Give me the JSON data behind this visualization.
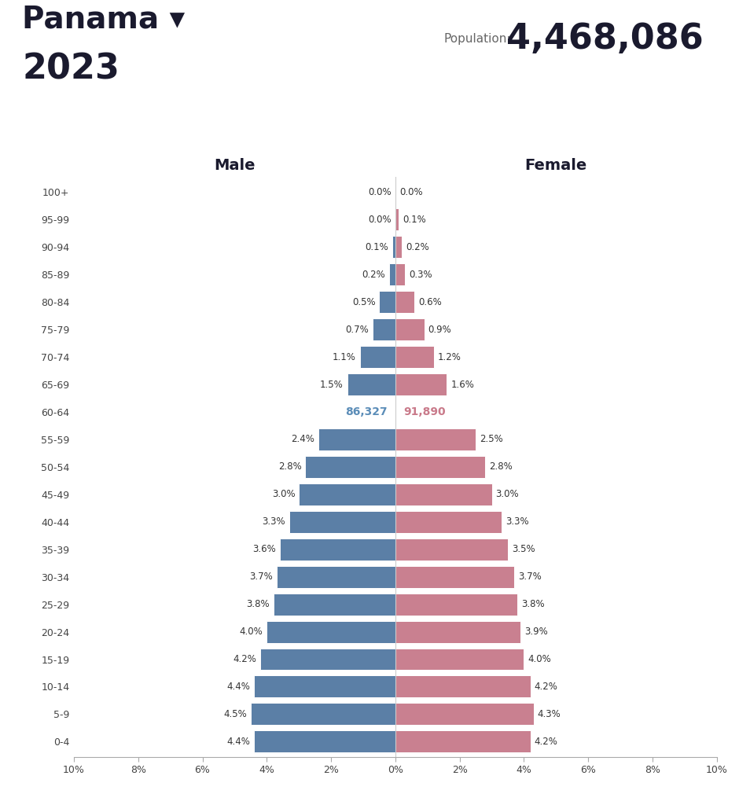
{
  "title_country": "Panama ▾",
  "title_year": "2023",
  "population_label": "Population:",
  "population_value": "4,468,086",
  "age_groups": [
    "0-4",
    "5-9",
    "10-14",
    "15-19",
    "20-24",
    "25-29",
    "30-34",
    "35-39",
    "40-44",
    "45-49",
    "50-54",
    "55-59",
    "60-64",
    "65-69",
    "70-74",
    "75-79",
    "80-84",
    "85-89",
    "90-94",
    "95-99",
    "100+"
  ],
  "male_pct": [
    4.4,
    4.5,
    4.4,
    4.2,
    4.0,
    3.8,
    3.7,
    3.6,
    3.3,
    3.0,
    2.8,
    2.4,
    0.0,
    1.5,
    1.1,
    0.7,
    0.5,
    0.2,
    0.1,
    0.0,
    0.0
  ],
  "female_pct": [
    4.2,
    4.3,
    4.2,
    4.0,
    3.9,
    3.8,
    3.7,
    3.5,
    3.3,
    3.0,
    2.8,
    2.5,
    0.0,
    1.6,
    1.2,
    0.9,
    0.6,
    0.3,
    0.2,
    0.1,
    0.0
  ],
  "male_labels": [
    "4.4%",
    "4.5%",
    "4.4%",
    "4.2%",
    "4.0%",
    "3.8%",
    "3.7%",
    "3.6%",
    "3.3%",
    "3.0%",
    "2.8%",
    "2.4%",
    "",
    "1.5%",
    "1.1%",
    "0.7%",
    "0.5%",
    "0.2%",
    "0.1%",
    "0.0%",
    "0.0%"
  ],
  "female_labels": [
    "4.2%",
    "4.3%",
    "4.2%",
    "4.0%",
    "3.9%",
    "3.8%",
    "3.7%",
    "3.5%",
    "3.3%",
    "3.0%",
    "2.8%",
    "2.5%",
    "",
    "1.6%",
    "1.2%",
    "0.9%",
    "0.6%",
    "0.3%",
    "0.2%",
    "0.1%",
    "0.0%"
  ],
  "highlight_age_idx": 12,
  "highlight_male_val": "86,327",
  "highlight_female_val": "91,890",
  "highlight_male_color": "#5b8db8",
  "highlight_female_color": "#c97a8a",
  "male_bar_color": "#5b7fa6",
  "female_bar_color": "#c98090",
  "background_color": "#ffffff",
  "xlim": 10,
  "figsize": [
    9.4,
    10.24
  ],
  "dpi": 100
}
